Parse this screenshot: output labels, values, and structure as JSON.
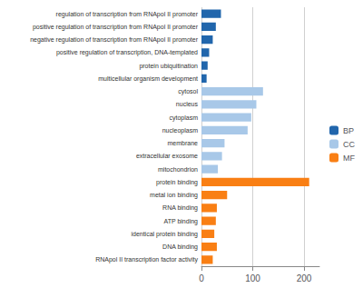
{
  "chart_data": {
    "type": "bar",
    "orientation": "horizontal",
    "categories": [
      "regulation of transcription from RNApol II promoter",
      "positive regulation of transcription from RNApol II promoter",
      "negative regulation of transcription from RNApol II promoter",
      "positive regulation of transcription, DNA-templated",
      "protein ubiquitination",
      "multicellular organism development",
      "cytosol",
      "nucleus",
      "cytoplasm",
      "nucleoplasm",
      "membrane",
      "extracellular exosome",
      "mitochondrion",
      "protein binding",
      "metal ion binding",
      "RNA binding",
      "ATP binding",
      "identical protein binding",
      "DNA binding",
      "RNApol II transcription factor activity"
    ],
    "series": [
      {
        "name": "BP",
        "color": "#2166ac",
        "values": [
          38,
          28,
          22,
          15,
          12,
          10,
          null,
          null,
          null,
          null,
          null,
          null,
          null,
          null,
          null,
          null,
          null,
          null,
          null,
          null
        ]
      },
      {
        "name": "CC",
        "color": "#a8c8e8",
        "values": [
          null,
          null,
          null,
          null,
          null,
          null,
          120,
          107,
          97,
          90,
          45,
          40,
          32,
          null,
          null,
          null,
          null,
          null,
          null,
          null
        ]
      },
      {
        "name": "MF",
        "color": "#f97f14",
        "values": [
          null,
          null,
          null,
          null,
          null,
          null,
          null,
          null,
          null,
          null,
          null,
          null,
          null,
          210,
          50,
          30,
          28,
          25,
          30,
          22
        ]
      }
    ],
    "xlim": [
      0,
      230
    ],
    "xticks": [
      0,
      100,
      200
    ],
    "grid": true,
    "legend": "right"
  }
}
